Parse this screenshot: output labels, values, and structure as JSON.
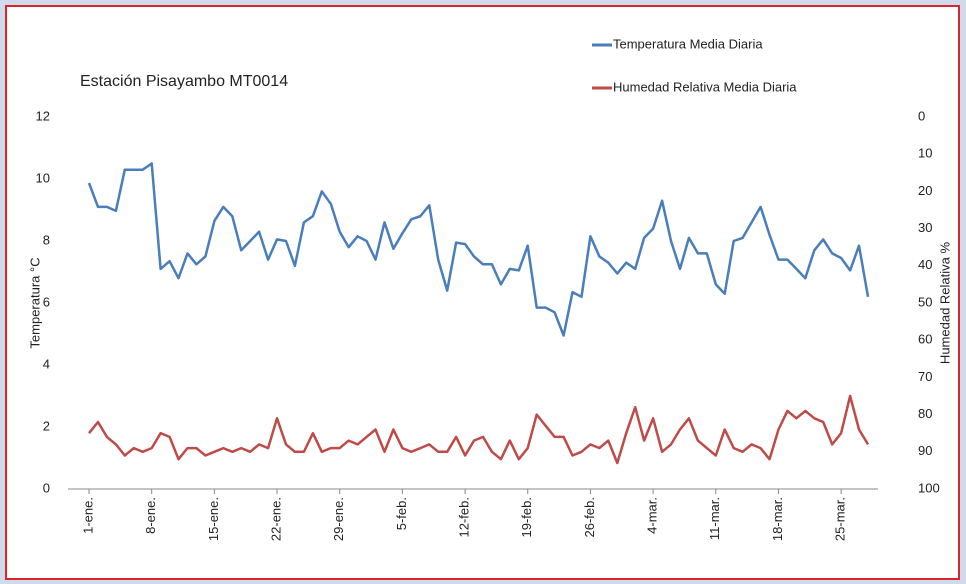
{
  "chart_data": {
    "type": "line",
    "title": "Estación Pisayambo  MT0014",
    "ylabel": "Temperatura °C",
    "y2label": "Humedad Relativa %",
    "categories": [
      "1-ene.",
      null,
      null,
      null,
      null,
      null,
      null,
      "8-ene.",
      null,
      null,
      null,
      null,
      null,
      null,
      "15-ene.",
      null,
      null,
      null,
      null,
      null,
      null,
      "22-ene.",
      null,
      null,
      null,
      null,
      null,
      null,
      "29-ene.",
      null,
      null,
      null,
      null,
      null,
      null,
      "5-feb.",
      null,
      null,
      null,
      null,
      null,
      null,
      "12-feb.",
      null,
      null,
      null,
      null,
      null,
      null,
      "19-feb.",
      null,
      null,
      null,
      null,
      null,
      null,
      "26-feb.",
      null,
      null,
      null,
      null,
      null,
      null,
      "4-mar.",
      null,
      null,
      null,
      null,
      null,
      null,
      "11-mar.",
      null,
      null,
      null,
      null,
      null,
      null,
      "18-mar.",
      null,
      null,
      null,
      null,
      null,
      null,
      "25-mar.",
      null,
      null,
      null
    ],
    "series": [
      {
        "name": "Temperatura Media Diaria",
        "color": "#4a7ebb",
        "axis": "y",
        "values": [
          9.87,
          9.1,
          9.1,
          8.97,
          10.3,
          10.3,
          10.3,
          10.5,
          7.1,
          7.35,
          6.8,
          7.6,
          7.25,
          7.5,
          8.65,
          9.1,
          8.8,
          7.7,
          8.0,
          8.3,
          7.4,
          8.05,
          8.0,
          7.2,
          8.6,
          8.8,
          9.6,
          9.2,
          8.3,
          7.8,
          8.15,
          8.0,
          7.4,
          8.6,
          7.75,
          8.25,
          8.7,
          8.8,
          9.15,
          7.4,
          6.4,
          7.95,
          7.9,
          7.5,
          7.25,
          7.25,
          6.6,
          7.1,
          7.05,
          7.85,
          5.85,
          5.85,
          5.7,
          4.95,
          6.35,
          6.2,
          8.15,
          7.5,
          7.3,
          6.95,
          7.3,
          7.1,
          8.1,
          8.4,
          9.3,
          8.0,
          7.1,
          8.1,
          7.6,
          7.6,
          6.6,
          6.3,
          8.0,
          8.1,
          8.6,
          9.1,
          8.2,
          7.4,
          7.4,
          7.1,
          6.8,
          7.7,
          8.05,
          7.6,
          7.45,
          7.05,
          7.85,
          6.2
        ]
      },
      {
        "name": "Humedad Relativa Media Diaria",
        "color": "#be4b48",
        "axis": "y2",
        "values": [
          85,
          82,
          86,
          88,
          91,
          89,
          90,
          89,
          85,
          86,
          92,
          89,
          89,
          91,
          90,
          89,
          90,
          89,
          90,
          88,
          89,
          81,
          88,
          90,
          90,
          85,
          90,
          89,
          89,
          87,
          88,
          86,
          84,
          90,
          84,
          89,
          90,
          89,
          88,
          90,
          90,
          86,
          91,
          87,
          86,
          90,
          92,
          87,
          92,
          89,
          80,
          83,
          86,
          86,
          91,
          90,
          88,
          89,
          87,
          93,
          85,
          78,
          87,
          81,
          90,
          88,
          84,
          81,
          87,
          89,
          91,
          84,
          89,
          90,
          88,
          89,
          92,
          84,
          79,
          81,
          79,
          81,
          82,
          88,
          85,
          75,
          84,
          88
        ]
      }
    ],
    "ylim": [
      0,
      12
    ],
    "yticks": [
      0,
      2,
      4,
      6,
      8,
      10,
      12
    ],
    "y2lim": [
      100,
      0
    ],
    "y2ticks": [
      0,
      10,
      20,
      30,
      40,
      50,
      60,
      70,
      80,
      90,
      100
    ],
    "legend": "top-right",
    "grid": false
  }
}
